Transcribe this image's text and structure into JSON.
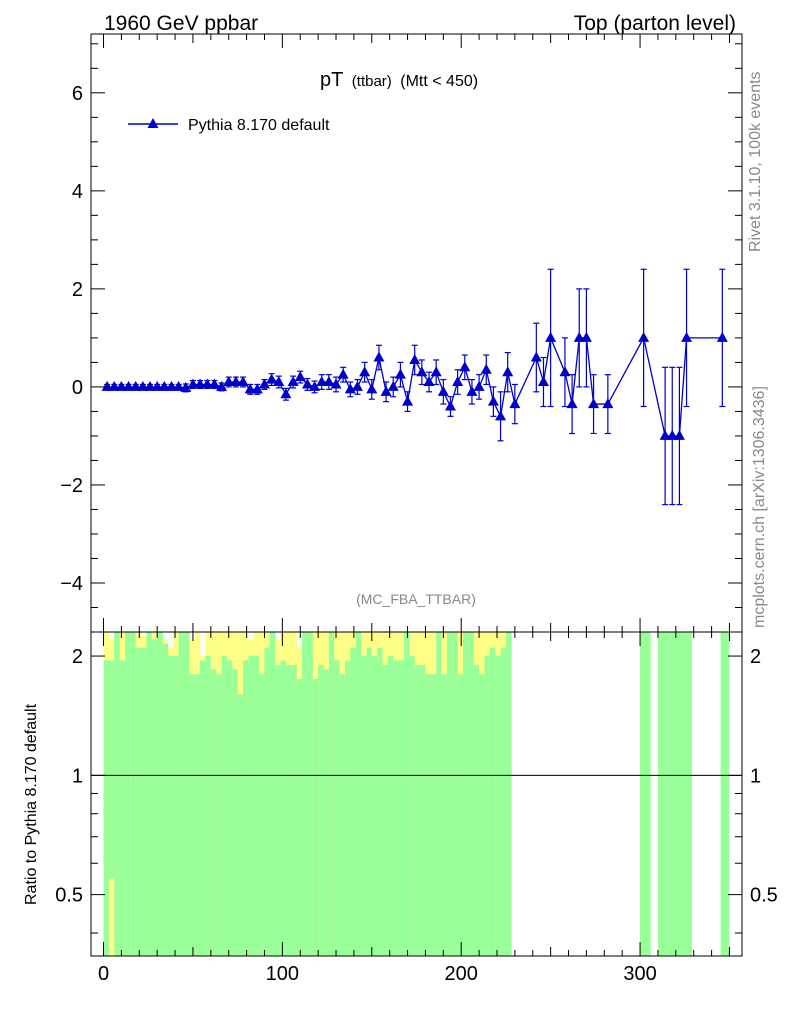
{
  "header": {
    "left": "1960 GeV ppbar",
    "right": "Top (parton level)"
  },
  "side": {
    "top": "Rivet 3.1.10,  100k events",
    "bottom": "mcplots.cern.ch [arXiv:1306.3436]"
  },
  "plot_title": {
    "main": "pT",
    "sub1": "(ttbar)",
    "sub2": "(Mtt < 450)"
  },
  "watermark": "(MC_FBA_TTBAR)",
  "ratio_ylabel": "Ratio to Pythia 8.170 default",
  "colors": {
    "series": "#0000cc",
    "band_green": "#99ff99",
    "band_yellow": "#ffff88",
    "axis": "#000000",
    "side_text": "#888888"
  },
  "chart_data": {
    "type": "line",
    "xlim": [
      -7,
      357
    ],
    "ylim": [
      -5,
      7.2
    ],
    "ratio_ylim": [
      0.35,
      2.3
    ],
    "x_ticks": [
      0,
      100,
      200,
      300
    ],
    "x_tick_labels": [
      "0",
      "100",
      "200",
      "300"
    ],
    "y_ticks": [
      -4,
      -2,
      0,
      2,
      4,
      6
    ],
    "y_tick_labels": [
      "−4",
      "−2",
      "0",
      "2",
      "4",
      "6"
    ],
    "ratio_y_ticks": [
      0.5,
      1,
      2
    ],
    "ratio_y_tick_labels": [
      "0.5",
      "1",
      "2"
    ],
    "legend": "top-left",
    "series": [
      {
        "name": "Pythia 8.170 default",
        "x": [
          2,
          6,
          10,
          14,
          18,
          22,
          26,
          30,
          34,
          38,
          42,
          46,
          50,
          54,
          58,
          62,
          66,
          70,
          74,
          78,
          82,
          86,
          90,
          94,
          98,
          102,
          106,
          110,
          114,
          118,
          122,
          126,
          130,
          134,
          138,
          142,
          146,
          150,
          154,
          158,
          162,
          166,
          170,
          174,
          178,
          182,
          186,
          190,
          194,
          198,
          202,
          206,
          210,
          214,
          218,
          222,
          226,
          230,
          242,
          246,
          250,
          258,
          262,
          266,
          270,
          274,
          282,
          302,
          314,
          318,
          322,
          326,
          346
        ],
        "y": [
          0,
          0,
          0,
          0,
          0,
          0,
          0,
          0,
          0,
          0,
          0,
          -0.02,
          0.05,
          0.05,
          0.05,
          0.05,
          0,
          0.1,
          0.1,
          0.1,
          -0.05,
          -0.05,
          0.05,
          0.15,
          0.1,
          -0.15,
          0.1,
          0.2,
          0.05,
          0,
          0.1,
          0.1,
          0.05,
          0.25,
          -0.05,
          0,
          0.3,
          -0.05,
          0.6,
          -0.1,
          0,
          0.25,
          -0.3,
          0.55,
          0.3,
          0.1,
          0.3,
          -0.1,
          -0.4,
          0.1,
          0.4,
          -0.1,
          0,
          0.35,
          -0.3,
          -0.6,
          0.3,
          -0.35,
          0.6,
          0.1,
          1,
          0.3,
          -0.35,
          1,
          1,
          -0.35,
          -0.35,
          1,
          -1,
          -1,
          -1,
          1,
          1
        ],
        "yerr": [
          0.05,
          0.05,
          0.05,
          0.05,
          0.05,
          0.05,
          0.05,
          0.05,
          0.05,
          0.05,
          0.05,
          0.08,
          0.08,
          0.08,
          0.08,
          0.08,
          0.08,
          0.1,
          0.1,
          0.1,
          0.1,
          0.1,
          0.1,
          0.12,
          0.12,
          0.12,
          0.12,
          0.12,
          0.12,
          0.12,
          0.15,
          0.15,
          0.15,
          0.15,
          0.15,
          0.15,
          0.2,
          0.2,
          0.25,
          0.2,
          0.2,
          0.25,
          0.2,
          0.3,
          0.25,
          0.2,
          0.25,
          0.25,
          0.2,
          0.25,
          0.25,
          0.25,
          0.25,
          0.3,
          0.3,
          0.5,
          0.4,
          0.4,
          0.7,
          0.5,
          1.4,
          0.7,
          0.6,
          1.0,
          1.0,
          0.6,
          0.6,
          1.4,
          1.4,
          1.4,
          1.4,
          1.4,
          1.4
        ]
      }
    ],
    "ratio_band": {
      "bin_width": 3,
      "x_start": 0,
      "yellow_upper": [
        2.3,
        2.2,
        2.3,
        2.3,
        2.3,
        2.3,
        2.3,
        2.25,
        2.2,
        2.3,
        2.3,
        2.2,
        2.1,
        2.3,
        2.3,
        2.3,
        2.2,
        2.3,
        2.0,
        2.3,
        2.3,
        2.3,
        2.3,
        2.3,
        2.3,
        2.3,
        2.3,
        2.2,
        2.3,
        2.3,
        2.3,
        2.3,
        2.2,
        2.3,
        2.3,
        2.3,
        2.1,
        2.3,
        2.3,
        2.3,
        2.3,
        2.3,
        2.2,
        2.3,
        2.3,
        2.3,
        2.3,
        2.3,
        2.3,
        2.3,
        2.3,
        2.3,
        2.3,
        2.3,
        2.3,
        2.3,
        2.3,
        2.3,
        2.3,
        2.3,
        2.3,
        2.3,
        2.3,
        2.3,
        2.3,
        2.3,
        2.3,
        2.3,
        2.3,
        2.3,
        2.3,
        2.3,
        2.3,
        2.3,
        2.3,
        2.3
      ],
      "green_upper": [
        1.95,
        1.95,
        2.3,
        1.95,
        2.3,
        2.3,
        2.1,
        2.1,
        2.3,
        2.2,
        2.3,
        2.15,
        2.0,
        2.0,
        2.3,
        2.3,
        1.8,
        1.8,
        1.95,
        2.0,
        1.85,
        1.8,
        2.0,
        1.95,
        1.85,
        1.6,
        1.95,
        2.0,
        2.0,
        1.8,
        2.1,
        2.3,
        1.9,
        1.95,
        1.9,
        1.9,
        1.75,
        2.3,
        2.3,
        1.75,
        1.9,
        1.85,
        2.3,
        1.95,
        1.8,
        1.95,
        2.1,
        2.3,
        2.0,
        2.1,
        2.0,
        2.1,
        1.9,
        2.0,
        1.95,
        1.95,
        2.3,
        2.0,
        1.9,
        1.9,
        1.8,
        1.8,
        2.3,
        1.8,
        2.3,
        2.3,
        1.8,
        2.3,
        2.3,
        1.9,
        1.8,
        2.0,
        2.1,
        2.0,
        2.1,
        2.3
      ],
      "green_lower": [
        0.35,
        0.55,
        0.35,
        0.35,
        0.35,
        0.35,
        0.35,
        0.35,
        0.35,
        0.35,
        0.35,
        0.35,
        0.35,
        0.35,
        0.35,
        0.35,
        0.35,
        0.35,
        0.35,
        0.35,
        0.35,
        0.35,
        0.35,
        0.35,
        0.35,
        0.35,
        0.35,
        0.35,
        0.35,
        0.35,
        0.35,
        0.35,
        0.35,
        0.35,
        0.35,
        0.35,
        0.35,
        0.35,
        0.35,
        0.35,
        0.35,
        0.35,
        0.35,
        0.35,
        0.35,
        0.35,
        0.35,
        0.35,
        0.35,
        0.35,
        0.35,
        0.35,
        0.35,
        0.35,
        0.35,
        0.35,
        0.35,
        0.35,
        0.35,
        0.35,
        0.35,
        0.35,
        0.35,
        0.35,
        0.35,
        0.35,
        0.35,
        0.35,
        0.35,
        0.35,
        0.35,
        0.35,
        0.35,
        0.35,
        0.35,
        0.35
      ],
      "yellow_lower": [
        0.35,
        0.35,
        0.35,
        0.35,
        0.35,
        0.35,
        0.35,
        0.35,
        0.35,
        0.35,
        0.35,
        0.35,
        0.35,
        0.35,
        0.35,
        0.35,
        0.35,
        0.35,
        0.35,
        0.35,
        0.35,
        0.35,
        0.35,
        0.35,
        0.35,
        0.35,
        0.35,
        0.35,
        0.35,
        0.35,
        0.35,
        0.35,
        0.35,
        0.35,
        0.35,
        0.35,
        0.35,
        0.35,
        0.35,
        0.35,
        0.35,
        0.35,
        0.35,
        0.35,
        0.35,
        0.35,
        0.35,
        0.35,
        0.35,
        0.35,
        0.35,
        0.35,
        0.35,
        0.35,
        0.35,
        0.35,
        0.35,
        0.35,
        0.35,
        0.35,
        0.35,
        0.35,
        0.35,
        0.35,
        0.35,
        0.35,
        0.35,
        0.35,
        0.35,
        0.35,
        0.35,
        0.35,
        0.35,
        0.35,
        0.35,
        0.35
      ],
      "gaps": [
        [
          231,
          239
        ],
        [
          256,
          258
        ],
        [
          278,
          282
        ],
        [
          283,
          300
        ],
        [
          306,
          310
        ],
        [
          329,
          345
        ]
      ]
    }
  }
}
